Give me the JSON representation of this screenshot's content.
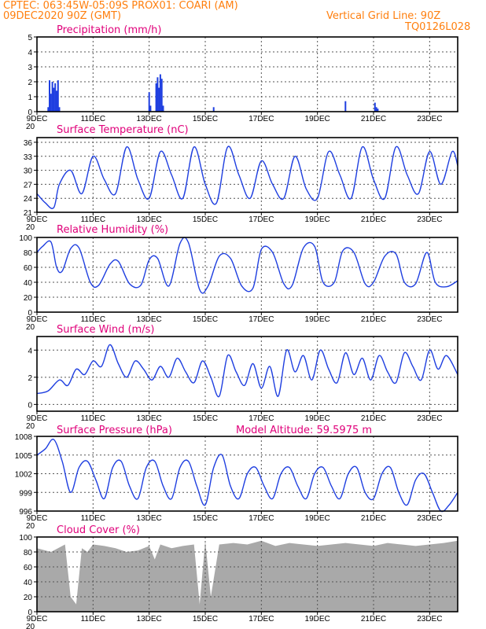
{
  "header": {
    "line1": "CPTEC:  063:45W-05:09S  PROX01: COARI (AM)",
    "line2_left": "09DEC2020 90Z (GMT)",
    "line2_right": "Vertical Grid Line: 90Z",
    "line3_right": "TQ0126L028"
  },
  "colors": {
    "header": "#ff7f0e",
    "title": "#e0007a",
    "line": "#1f3fe0",
    "cloud": "#a9a9a9"
  },
  "x_axis": {
    "labels": [
      "9DEC",
      "11DEC",
      "13DEC",
      "15DEC",
      "17DEC",
      "19DEC",
      "21DEC",
      "23DEC"
    ],
    "label_days": [
      0,
      2,
      4,
      6,
      8,
      10,
      12,
      14
    ],
    "range_days": [
      0,
      15
    ],
    "cutoff_text": "20"
  },
  "chart_data": [
    {
      "type": "bar",
      "title": "Precipitation (mm/h)",
      "ylim": [
        0,
        5
      ],
      "yticks": [
        "0",
        "1",
        "2",
        "3",
        "4",
        "5"
      ],
      "grid": true,
      "x_days": [
        0.4,
        0.45,
        0.5,
        0.55,
        0.6,
        0.65,
        0.7,
        0.75,
        0.8,
        4.0,
        4.05,
        4.25,
        4.3,
        4.35,
        4.4,
        4.45,
        4.5,
        6.3,
        11.0,
        12.05,
        12.1,
        12.15
      ],
      "values": [
        0.3,
        2.1,
        1.2,
        2.0,
        1.6,
        1.9,
        1.4,
        2.1,
        0.3,
        1.3,
        0.4,
        1.9,
        2.3,
        1.6,
        2.5,
        2.2,
        0.4,
        0.3,
        0.7,
        0.6,
        0.3,
        0.2
      ]
    },
    {
      "type": "line",
      "title": "Surface Temperature (nC)",
      "ylim": [
        21,
        37
      ],
      "yticks": [
        "21",
        "24",
        "27",
        "30",
        "33",
        "36"
      ],
      "grid": true,
      "x_days": [
        0,
        0.3,
        0.6,
        0.8,
        1.2,
        1.6,
        2.0,
        2.4,
        2.8,
        3.2,
        3.6,
        4.0,
        4.4,
        4.8,
        5.2,
        5.6,
        6.0,
        6.4,
        6.8,
        7.2,
        7.6,
        8.0,
        8.4,
        8.8,
        9.2,
        9.6,
        10.0,
        10.4,
        10.8,
        11.2,
        11.6,
        12.0,
        12.4,
        12.8,
        13.2,
        13.6,
        14.0,
        14.4,
        14.8,
        15.0
      ],
      "values": [
        25,
        23,
        22,
        27,
        30,
        25,
        33,
        28,
        25,
        35,
        28,
        24,
        34,
        29,
        24,
        35,
        27,
        23,
        35,
        29,
        24,
        32,
        27,
        24,
        33,
        26,
        24,
        34,
        29,
        24,
        35,
        28,
        24,
        35,
        29,
        25,
        34,
        27,
        34,
        31
      ]
    },
    {
      "type": "line",
      "title": "Relative Humidity (%)",
      "ylim": [
        0,
        100
      ],
      "yticks": [
        "0",
        "20",
        "40",
        "60",
        "80",
        "100"
      ],
      "grid": true,
      "x_days": [
        0,
        0.2,
        0.5,
        0.7,
        0.9,
        1.2,
        1.5,
        1.9,
        2.2,
        2.6,
        2.9,
        3.3,
        3.7,
        4.0,
        4.3,
        4.7,
        5.1,
        5.4,
        5.8,
        6.1,
        6.5,
        6.9,
        7.3,
        7.7,
        8.0,
        8.4,
        8.8,
        9.1,
        9.5,
        9.9,
        10.2,
        10.6,
        10.9,
        11.3,
        11.7,
        12.0,
        12.4,
        12.8,
        13.1,
        13.5,
        13.9,
        14.2,
        14.6,
        15.0
      ],
      "values": [
        80,
        88,
        94,
        60,
        55,
        85,
        86,
        40,
        36,
        64,
        68,
        38,
        36,
        70,
        72,
        35,
        92,
        93,
        30,
        35,
        75,
        72,
        35,
        32,
        84,
        80,
        38,
        36,
        86,
        88,
        40,
        40,
        82,
        80,
        38,
        40,
        75,
        78,
        40,
        38,
        80,
        40,
        34,
        42
      ]
    },
    {
      "type": "line",
      "title": "Surface Wind (m/s)",
      "ylim": [
        -0.5,
        5
      ],
      "yticks": [
        "0",
        "2",
        "4"
      ],
      "grid": true,
      "x_days": [
        0,
        0.4,
        0.8,
        1.1,
        1.4,
        1.7,
        2.0,
        2.3,
        2.6,
        2.9,
        3.2,
        3.5,
        3.8,
        4.1,
        4.4,
        4.7,
        5.0,
        5.3,
        5.6,
        5.9,
        6.2,
        6.5,
        6.8,
        7.1,
        7.4,
        7.7,
        8.0,
        8.3,
        8.6,
        8.9,
        9.2,
        9.5,
        9.8,
        10.1,
        10.4,
        10.7,
        11.0,
        11.3,
        11.6,
        11.9,
        12.2,
        12.5,
        12.8,
        13.1,
        13.4,
        13.7,
        14.0,
        14.3,
        14.6,
        15.0
      ],
      "values": [
        0.8,
        1.0,
        1.8,
        1.4,
        2.6,
        2.2,
        3.2,
        2.8,
        4.4,
        3.0,
        2.0,
        3.2,
        2.6,
        1.8,
        2.8,
        2.0,
        3.4,
        2.4,
        1.6,
        3.2,
        2.0,
        0.6,
        3.6,
        2.4,
        1.4,
        3.0,
        1.2,
        2.8,
        0.6,
        4.0,
        2.4,
        3.6,
        1.8,
        4.0,
        2.6,
        1.6,
        3.8,
        2.2,
        3.4,
        1.8,
        3.6,
        2.4,
        1.6,
        3.8,
        2.8,
        1.8,
        4.0,
        2.6,
        3.6,
        2.2
      ]
    },
    {
      "type": "line",
      "title": "Surface Pressure (hPa)",
      "annotation": "Model Altitude: 59.5975  m",
      "ylim": [
        996,
        1008
      ],
      "yticks": [
        "996",
        "999",
        "1002",
        "1005",
        "1008"
      ],
      "grid": true,
      "x_days": [
        0,
        0.3,
        0.6,
        0.9,
        1.2,
        1.5,
        1.8,
        2.1,
        2.4,
        2.7,
        3.0,
        3.3,
        3.6,
        3.9,
        4.2,
        4.5,
        4.8,
        5.1,
        5.4,
        5.7,
        6.0,
        6.3,
        6.6,
        6.9,
        7.2,
        7.5,
        7.8,
        8.1,
        8.4,
        8.7,
        9.0,
        9.3,
        9.6,
        9.9,
        10.2,
        10.5,
        10.8,
        11.1,
        11.4,
        11.7,
        12.0,
        12.3,
        12.6,
        12.9,
        13.2,
        13.5,
        13.8,
        14.1,
        14.4,
        14.7,
        15.0
      ],
      "values": [
        1005,
        1006,
        1007.5,
        1004,
        999,
        1003,
        1004,
        1001,
        998,
        1003,
        1004,
        1000,
        998,
        1003,
        1004,
        1000,
        998,
        1003,
        1004,
        1000,
        997,
        1003,
        1005,
        1000,
        998,
        1002,
        1003,
        1000,
        998,
        1002,
        1003,
        1000,
        998,
        1002,
        1003,
        1000,
        998,
        1002,
        1003,
        999,
        998,
        1002,
        1003,
        999,
        997,
        1001,
        1002,
        999,
        996,
        997,
        999
      ]
    },
    {
      "type": "area",
      "title": "Cloud Cover (%)",
      "ylim": [
        0,
        100
      ],
      "yticks": [
        "0",
        "20",
        "40",
        "60",
        "80",
        "100"
      ],
      "grid": true,
      "x_days": [
        0,
        0.5,
        1.0,
        1.2,
        1.4,
        1.6,
        1.8,
        2.0,
        2.4,
        2.8,
        3.2,
        3.6,
        4.0,
        4.2,
        4.4,
        4.8,
        5.2,
        5.6,
        5.8,
        6.0,
        6.2,
        6.5,
        7.0,
        7.5,
        8.0,
        8.5,
        9.0,
        9.5,
        10.0,
        10.5,
        11.0,
        11.5,
        12.0,
        12.5,
        13.0,
        13.5,
        14.0,
        14.5,
        15.0
      ],
      "values": [
        85,
        80,
        90,
        20,
        10,
        85,
        80,
        90,
        88,
        85,
        80,
        82,
        88,
        70,
        90,
        85,
        88,
        90,
        10,
        95,
        20,
        90,
        92,
        90,
        95,
        88,
        92,
        90,
        88,
        90,
        92,
        90,
        88,
        92,
        90,
        88,
        90,
        92,
        95
      ]
    }
  ]
}
